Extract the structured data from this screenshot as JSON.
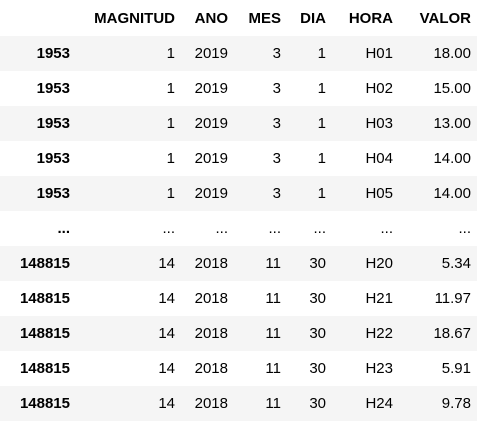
{
  "table": {
    "index_header": "",
    "columns": [
      "MAGNITUD",
      "ANO",
      "MES",
      "DIA",
      "HORA",
      "VALOR"
    ],
    "rows": [
      {
        "index": "1953",
        "cells": [
          "1",
          "2019",
          "3",
          "1",
          "H01",
          "18.00"
        ]
      },
      {
        "index": "1953",
        "cells": [
          "1",
          "2019",
          "3",
          "1",
          "H02",
          "15.00"
        ]
      },
      {
        "index": "1953",
        "cells": [
          "1",
          "2019",
          "3",
          "1",
          "H03",
          "13.00"
        ]
      },
      {
        "index": "1953",
        "cells": [
          "1",
          "2019",
          "3",
          "1",
          "H04",
          "14.00"
        ]
      },
      {
        "index": "1953",
        "cells": [
          "1",
          "2019",
          "3",
          "1",
          "H05",
          "14.00"
        ]
      },
      {
        "index": "...",
        "cells": [
          "...",
          "...",
          "...",
          "...",
          "...",
          "..."
        ]
      },
      {
        "index": "148815",
        "cells": [
          "14",
          "2018",
          "11",
          "30",
          "H20",
          "5.34"
        ]
      },
      {
        "index": "148815",
        "cells": [
          "14",
          "2018",
          "11",
          "30",
          "H21",
          "11.97"
        ]
      },
      {
        "index": "148815",
        "cells": [
          "14",
          "2018",
          "11",
          "30",
          "H22",
          "18.67"
        ]
      },
      {
        "index": "148815",
        "cells": [
          "14",
          "2018",
          "11",
          "30",
          "H23",
          "5.91"
        ]
      },
      {
        "index": "148815",
        "cells": [
          "14",
          "2018",
          "11",
          "30",
          "H24",
          "9.78"
        ]
      }
    ]
  },
  "colors": {
    "stripe": "#f5f5f5",
    "background": "#ffffff",
    "text": "#000000"
  }
}
